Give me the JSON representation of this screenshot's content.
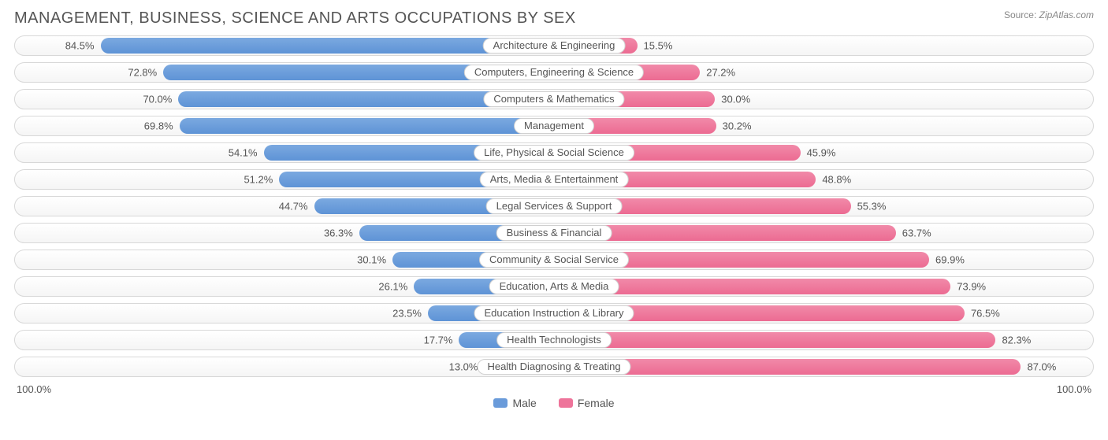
{
  "title": "MANAGEMENT, BUSINESS, SCIENCE AND ARTS OCCUPATIONS BY SEX",
  "source_label": "Source:",
  "source_site": "ZipAtlas.com",
  "axis": {
    "left": "100.0%",
    "right": "100.0%"
  },
  "legend": {
    "male": "Male",
    "female": "Female"
  },
  "chart": {
    "type": "diverging-bar",
    "male_color": "#6a9bda",
    "female_color": "#ee749a",
    "track_border": "#d8d8d8",
    "background": "#ffffff",
    "label_fontsize": 13,
    "title_fontsize": 20,
    "rows": [
      {
        "category": "Architecture & Engineering",
        "male": 84.5,
        "female": 15.5
      },
      {
        "category": "Computers, Engineering & Science",
        "male": 72.8,
        "female": 27.2
      },
      {
        "category": "Computers & Mathematics",
        "male": 70.0,
        "female": 30.0
      },
      {
        "category": "Management",
        "male": 69.8,
        "female": 30.2
      },
      {
        "category": "Life, Physical & Social Science",
        "male": 54.1,
        "female": 45.9
      },
      {
        "category": "Arts, Media & Entertainment",
        "male": 51.2,
        "female": 48.8
      },
      {
        "category": "Legal Services & Support",
        "male": 44.7,
        "female": 55.3
      },
      {
        "category": "Business & Financial",
        "male": 36.3,
        "female": 63.7
      },
      {
        "category": "Community & Social Service",
        "male": 30.1,
        "female": 69.9
      },
      {
        "category": "Education, Arts & Media",
        "male": 26.1,
        "female": 73.9
      },
      {
        "category": "Education Instruction & Library",
        "male": 23.5,
        "female": 76.5
      },
      {
        "category": "Health Technologists",
        "male": 17.7,
        "female": 82.3
      },
      {
        "category": "Health Diagnosing & Treating",
        "male": 13.0,
        "female": 87.0
      }
    ]
  }
}
